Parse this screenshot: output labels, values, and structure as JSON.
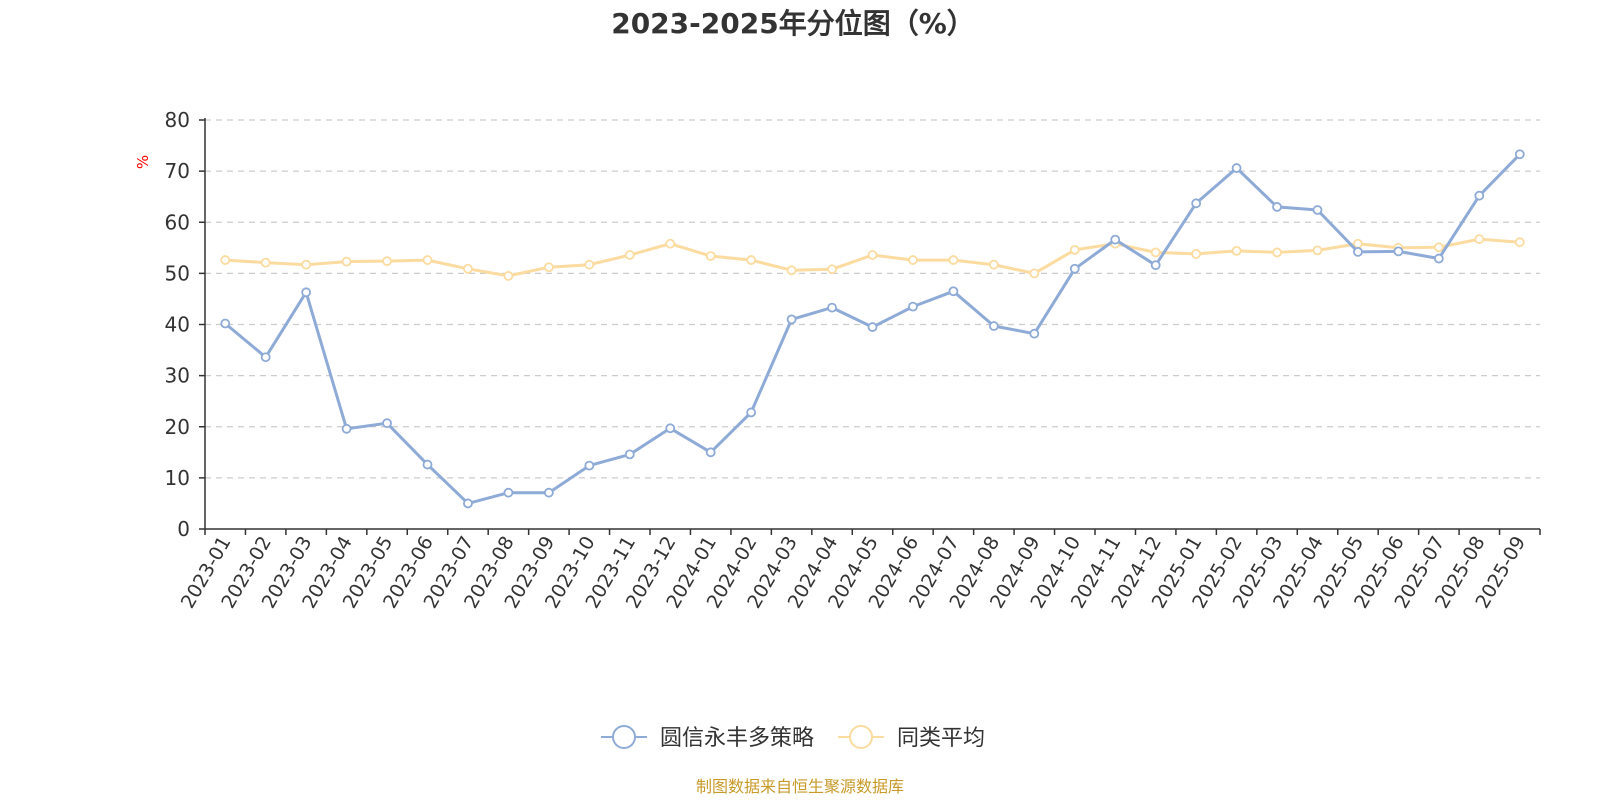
{
  "chart_data": {
    "type": "line",
    "title": "2023-2025年分位图（%）",
    "unit": "%",
    "ylim": [
      0,
      80
    ],
    "yticks": [
      0,
      10,
      20,
      30,
      40,
      50,
      60,
      70,
      80
    ],
    "grid": "horizontal-dashed",
    "legend_position": "bottom-center",
    "categories": [
      "2023-01",
      "2023-02",
      "2023-03",
      "2023-04",
      "2023-05",
      "2023-06",
      "2023-07",
      "2023-08",
      "2023-09",
      "2023-10",
      "2023-11",
      "2023-12",
      "2024-01",
      "2024-02",
      "2024-03",
      "2024-04",
      "2024-05",
      "2024-06",
      "2024-07",
      "2024-08",
      "2024-09",
      "2024-10",
      "2024-11",
      "2024-12",
      "2025-01",
      "2025-02",
      "2025-03",
      "2025-04",
      "2025-05",
      "2025-06",
      "2025-07",
      "2025-08",
      "2025-09"
    ],
    "series": [
      {
        "name": "圆信永丰多策略",
        "color": "#8eaad6",
        "values": [
          40.2,
          33.6,
          46.3,
          19.6,
          20.7,
          12.6,
          5.0,
          7.1,
          7.1,
          12.4,
          14.6,
          19.7,
          15.0,
          22.8,
          41.0,
          43.3,
          39.5,
          43.5,
          46.5,
          39.7,
          38.2,
          50.9,
          56.6,
          51.6,
          63.7,
          70.6,
          63.0,
          62.4,
          54.2,
          54.3,
          52.9,
          65.2,
          73.3
        ]
      },
      {
        "name": "同类平均",
        "color": "#fbdba0",
        "values": [
          52.6,
          52.1,
          51.7,
          52.3,
          52.4,
          52.6,
          50.9,
          49.5,
          51.2,
          51.7,
          53.6,
          55.8,
          53.4,
          52.6,
          50.6,
          50.8,
          53.6,
          52.6,
          52.6,
          51.7,
          50.0,
          54.6,
          55.8,
          54.1,
          53.8,
          54.4,
          54.1,
          54.5,
          55.8,
          55.0,
          55.1,
          56.7,
          56.1
        ]
      }
    ]
  },
  "source": "制图数据来自恒生聚源数据库"
}
